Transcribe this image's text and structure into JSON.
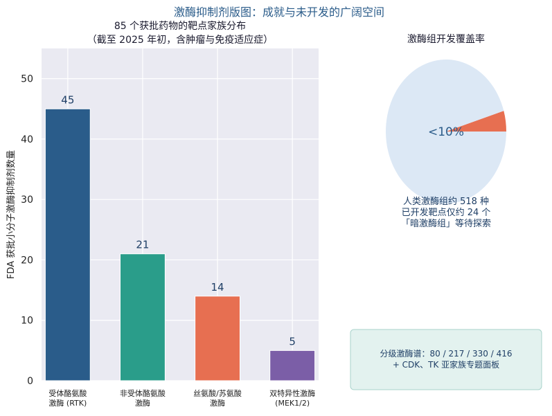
{
  "figure": {
    "suptitle": "激酶抑制剂版图：成就与未开发的广阔空间"
  },
  "chart_data": [
    {
      "type": "bar",
      "title": "85 个获批药物的靶点家族分布",
      "subtitle": "（截至 2025 年初，含肿瘤与免疫适应症）",
      "xlabel": "",
      "ylabel": "FDA 获批小分子激酶抑制剂数量",
      "ylim": [
        0,
        55
      ],
      "yticks": [
        0,
        10,
        20,
        30,
        40,
        50
      ],
      "grid": true,
      "categories": [
        [
          "受体酪氨酸",
          "激酶 (RTK)"
        ],
        [
          "非受体酪氨酸",
          "激酶"
        ],
        [
          "丝氨酸/苏氨酸",
          "激酶"
        ],
        [
          "双特异性激酶",
          "(MEK1/2)"
        ]
      ],
      "values": [
        45,
        21,
        14,
        5
      ],
      "colors": [
        "#2a5c8a",
        "#2a9d8a",
        "#e76f51",
        "#7b5ea7"
      ]
    },
    {
      "type": "pie",
      "title": "激酶组开发覆盖率",
      "center_label": "<10%",
      "slices": [
        {
          "value": 24,
          "color": "#e76f51"
        },
        {
          "value": 494,
          "color": "#dce8f5"
        }
      ],
      "note_lines": [
        "人类激酶组约 518 种",
        "已开发靶点仅约 24 个",
        "「暗激酶组」等待探索"
      ]
    }
  ],
  "info_box": {
    "lines": [
      "分级激酶谱：80 / 217 / 330 / 416",
      "+ CDK、TK 亚家族专题面板"
    ]
  }
}
